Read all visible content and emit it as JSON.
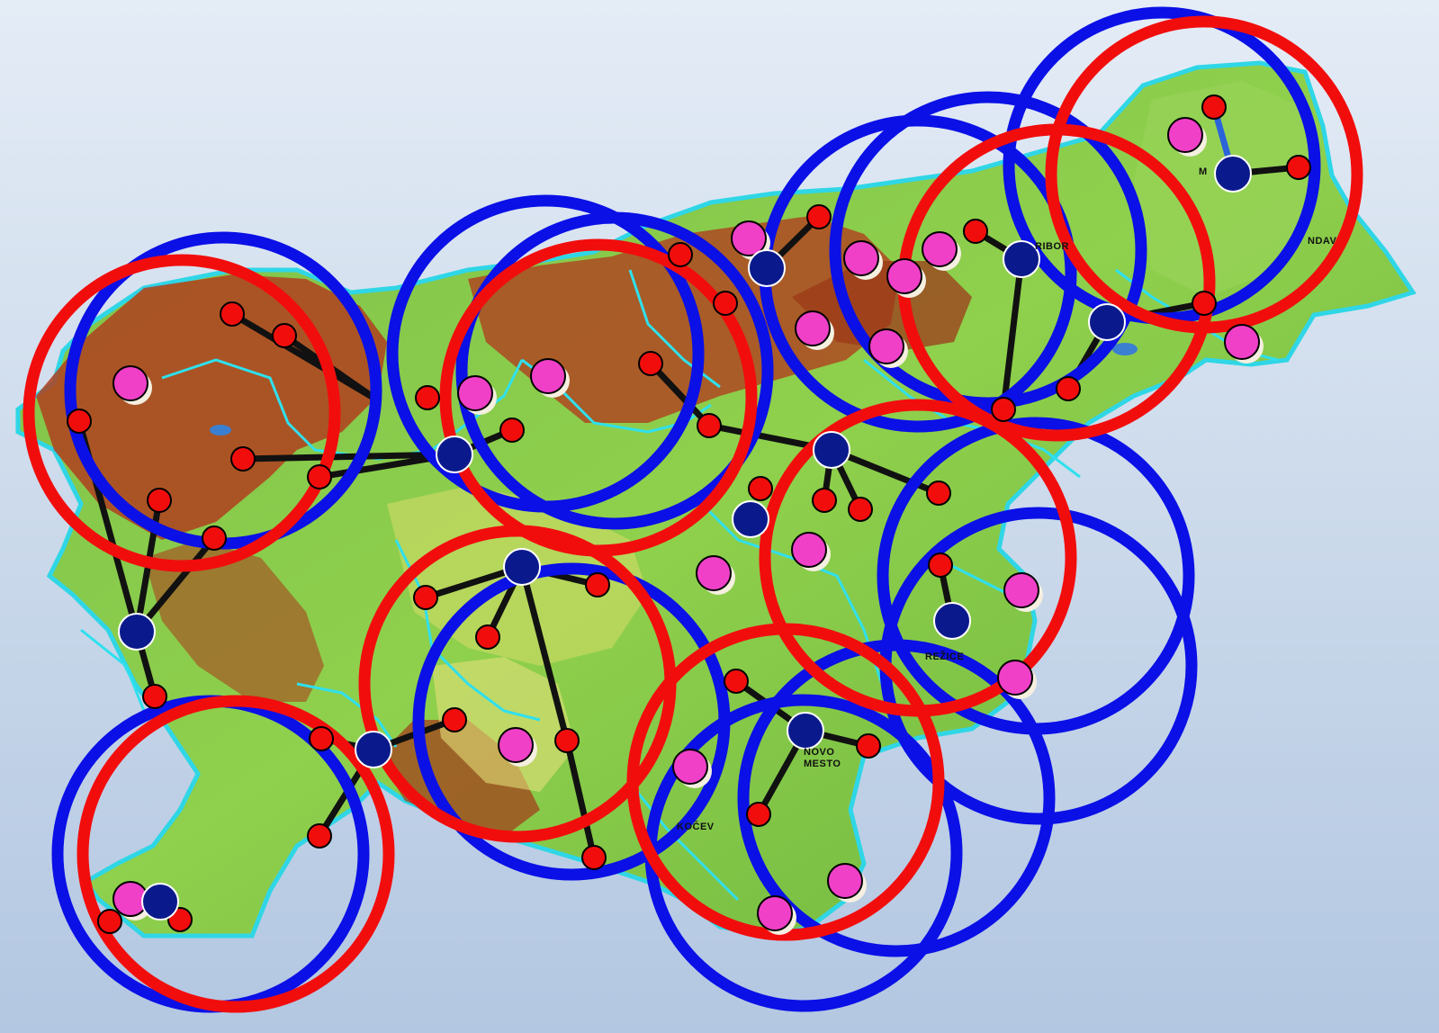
{
  "map": {
    "country": "Slovenia",
    "labels": {
      "maribor": "RIBOR",
      "lendava": "NDAV",
      "murska": "M",
      "brezice": "REŽICE",
      "novo_mesto_1": "NOVO",
      "novo_mesto_2": "MESTO",
      "kocevje": "KOČEV"
    }
  },
  "legend_colors": {
    "hub_node": "#0a1a8c",
    "red_node": "#f20d0d",
    "pink_node": "#f040c8",
    "link_line": "#111111",
    "blue_coverage_ring": "#0a10e6",
    "red_coverage_ring": "#f20d0d",
    "region_border": "#33e6f0"
  },
  "icons": {
    "hub": "navy-circle-icon",
    "relay": "red-circle-icon",
    "site": "pink-circle-icon"
  }
}
